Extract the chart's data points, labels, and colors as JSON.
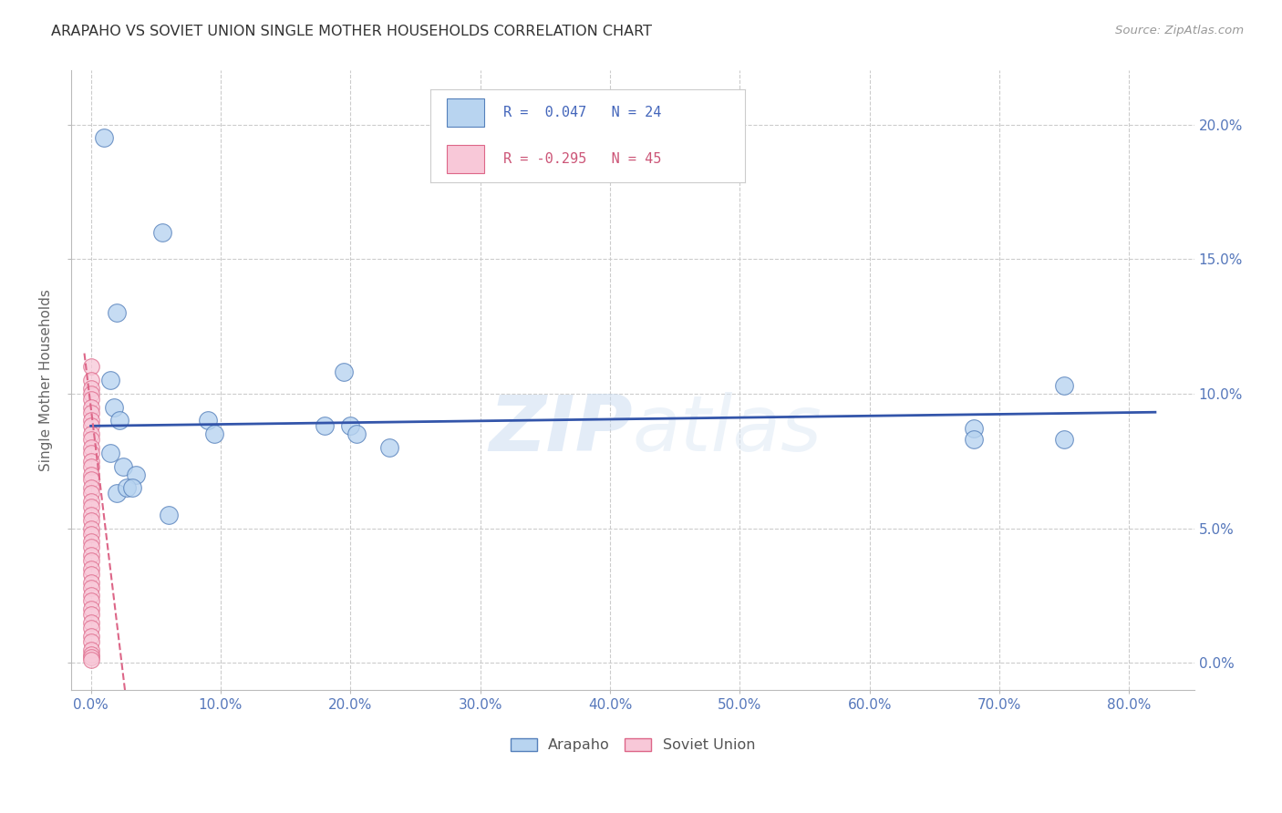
{
  "title": "ARAPAHO VS SOVIET UNION SINGLE MOTHER HOUSEHOLDS CORRELATION CHART",
  "source": "Source: ZipAtlas.com",
  "ylabel": "Single Mother Households",
  "ytick_values": [
    0.0,
    5.0,
    10.0,
    15.0,
    20.0
  ],
  "xtick_values": [
    0.0,
    10.0,
    20.0,
    30.0,
    40.0,
    50.0,
    60.0,
    70.0,
    80.0
  ],
  "xmin": -1.5,
  "xmax": 85.0,
  "ymin": -1.0,
  "ymax": 22.0,
  "arapaho_x": [
    1.0,
    5.5,
    2.0,
    1.5,
    1.8,
    2.2,
    9.0,
    9.5,
    18.0,
    20.0,
    19.5,
    75.0,
    68.0,
    20.5,
    23.0,
    1.5,
    2.5,
    3.5,
    68.0,
    75.0,
    2.0,
    2.8,
    3.2,
    6.0
  ],
  "arapaho_y": [
    19.5,
    16.0,
    13.0,
    10.5,
    9.5,
    9.0,
    9.0,
    8.5,
    8.8,
    8.8,
    10.8,
    10.3,
    8.7,
    8.5,
    8.0,
    7.8,
    7.3,
    7.0,
    8.3,
    8.3,
    6.3,
    6.5,
    6.5,
    5.5
  ],
  "soviet_x": [
    0.05,
    0.05,
    0.05,
    0.05,
    0.05,
    0.05,
    0.05,
    0.05,
    0.05,
    0.05,
    0.05,
    0.05,
    0.05,
    0.05,
    0.05,
    0.05,
    0.05,
    0.05,
    0.05,
    0.05,
    0.05,
    0.05,
    0.05,
    0.05,
    0.05,
    0.05,
    0.05,
    0.05,
    0.05,
    0.05,
    0.05,
    0.05,
    0.05,
    0.05,
    0.05,
    0.05,
    0.05,
    0.05,
    0.05,
    0.05,
    0.05,
    0.05,
    0.05,
    0.05,
    0.05
  ],
  "soviet_y": [
    11.0,
    10.5,
    10.2,
    10.0,
    9.8,
    9.5,
    9.3,
    9.0,
    8.8,
    8.5,
    8.3,
    8.0,
    7.8,
    7.5,
    7.3,
    7.0,
    6.8,
    6.5,
    6.3,
    6.0,
    5.8,
    5.5,
    5.3,
    5.0,
    4.8,
    4.5,
    4.3,
    4.0,
    3.8,
    3.5,
    3.3,
    3.0,
    2.8,
    2.5,
    2.3,
    2.0,
    1.8,
    1.5,
    1.3,
    1.0,
    0.8,
    0.5,
    0.3,
    0.2,
    0.1
  ],
  "arapaho_color": "#b8d4f0",
  "arapaho_edge_color": "#5580bb",
  "soviet_color": "#f8c8d8",
  "soviet_edge_color": "#dd6688",
  "arapaho_line_color": "#3355aa",
  "soviet_line_color": "#dd6688",
  "legend_arapaho_R": "R =  0.047",
  "legend_arapaho_N": "N = 24",
  "legend_soviet_R": "R = -0.295",
  "legend_soviet_N": "N = 45",
  "watermark_zip": "ZIP",
  "watermark_atlas": "atlas",
  "background_color": "#ffffff",
  "grid_color": "#cccccc"
}
